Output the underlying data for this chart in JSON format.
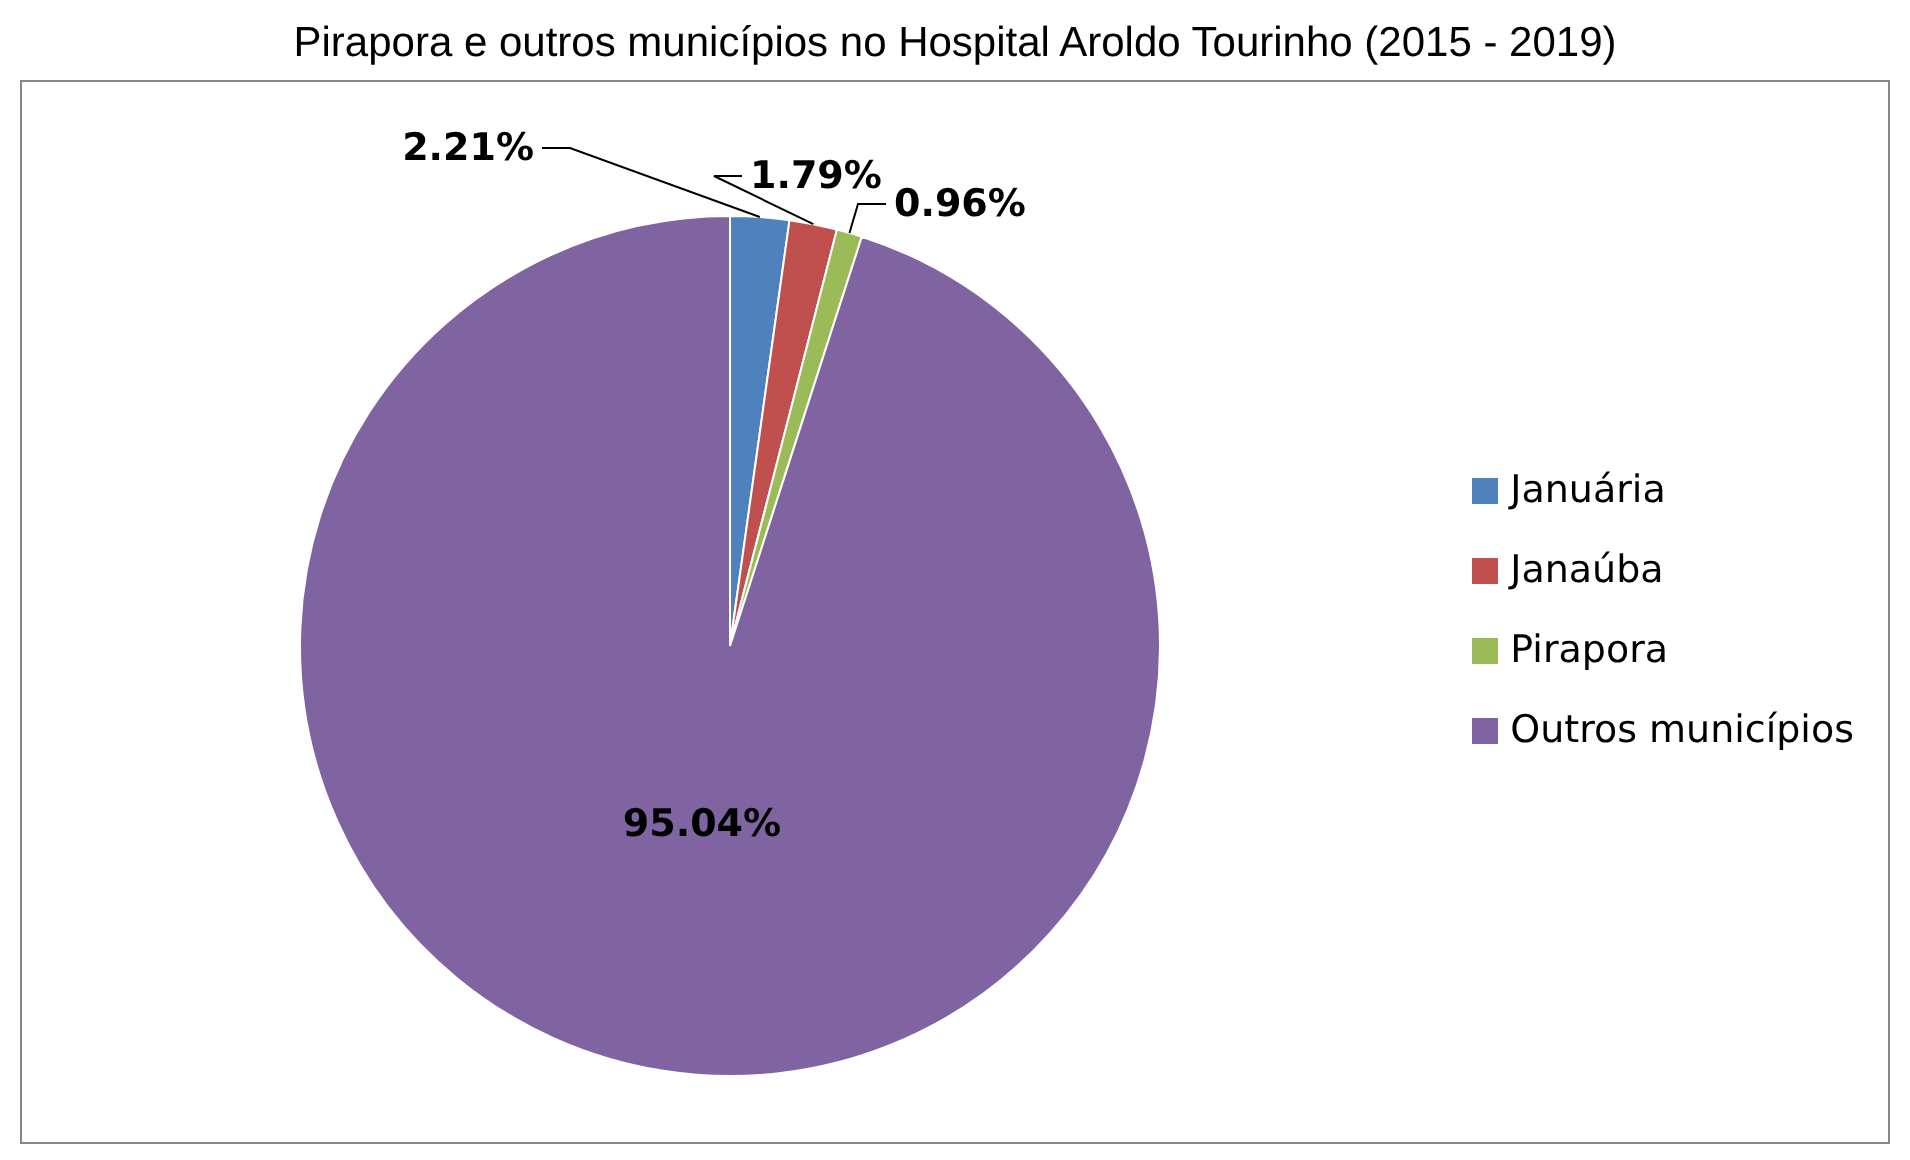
{
  "chart_data": {
    "type": "pie",
    "title": "Pirapora e outros municípios no Hospital Aroldo Tourinho (2015 - 2019)",
    "categories": [
      "Januária",
      "Janaúba",
      "Pirapora",
      "Outros municípios"
    ],
    "values": [
      2.21,
      1.79,
      0.96,
      95.04
    ],
    "value_labels": [
      "2.21%",
      "1.79%",
      "0.96%",
      "95.04%"
    ],
    "colors": [
      "#4f81bd",
      "#c0504d",
      "#9bbb59",
      "#8064a2"
    ],
    "legend": "right"
  }
}
